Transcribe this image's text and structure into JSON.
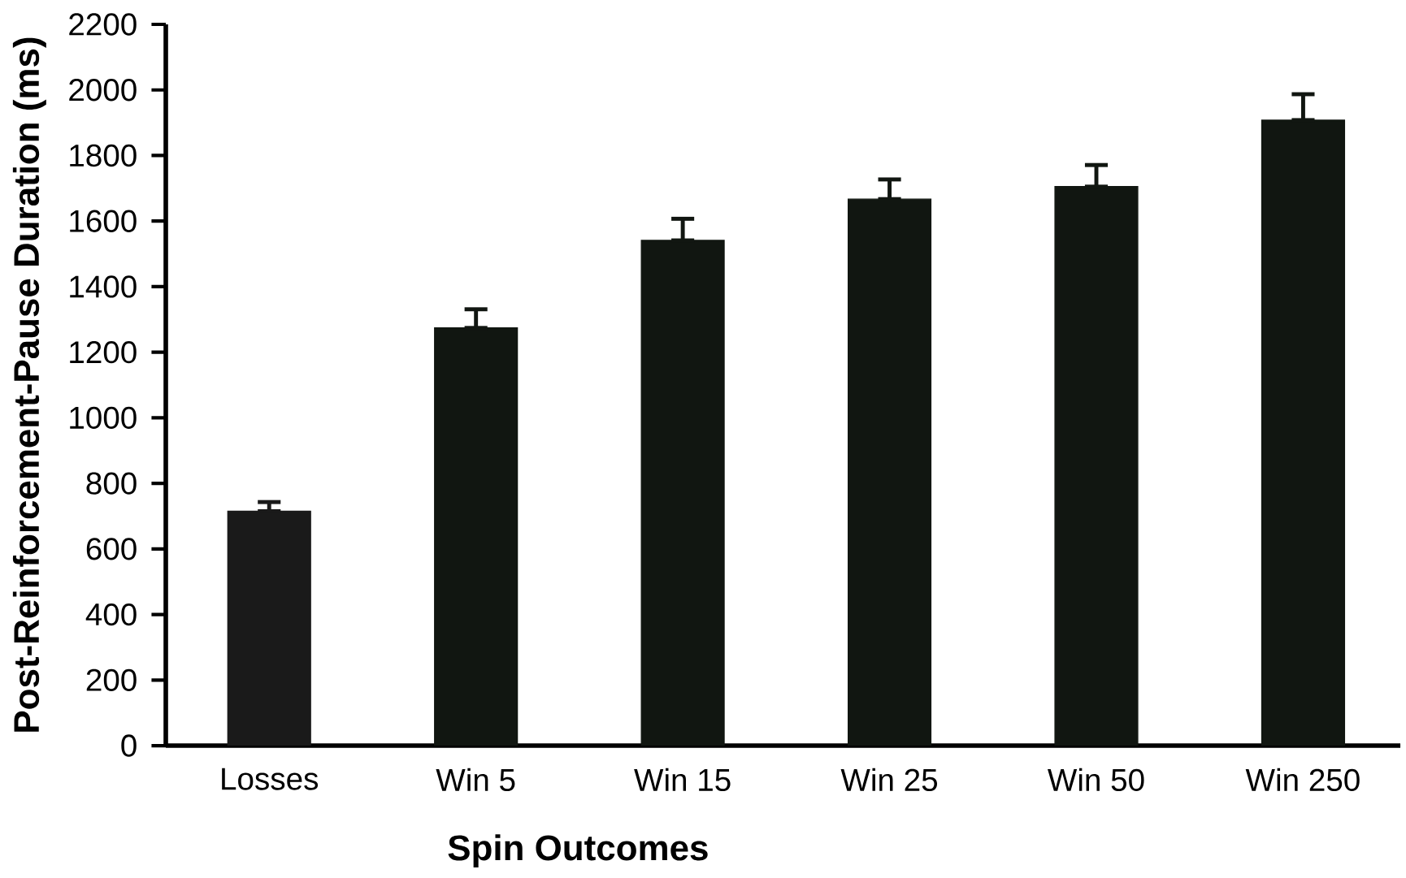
{
  "chart_data": {
    "type": "bar",
    "xlabel": "Spin Outcomes",
    "ylabel": "Post-Reinforcement-Pause Duration (ms)",
    "categories": [
      "Losses",
      "Win 5",
      "Win 15",
      "Win 25",
      "Win 50",
      "Win 250"
    ],
    "values": [
      715,
      1274,
      1541,
      1667,
      1705,
      1908
    ],
    "errors": [
      [
        715,
        743
      ],
      [
        1274,
        1331
      ],
      [
        1541,
        1607
      ],
      [
        1667,
        1727
      ],
      [
        1705,
        1771
      ],
      [
        1908,
        1987
      ]
    ],
    "colors": [
      "#1a1a1a",
      "#111611",
      "#111611",
      "#111611",
      "#111611",
      "#111611"
    ],
    "ylim": [
      0,
      2200
    ],
    "yticks": [
      0,
      200,
      400,
      600,
      800,
      1000,
      1200,
      1400,
      1600,
      1800,
      2000,
      2200
    ],
    "grid": false
  }
}
